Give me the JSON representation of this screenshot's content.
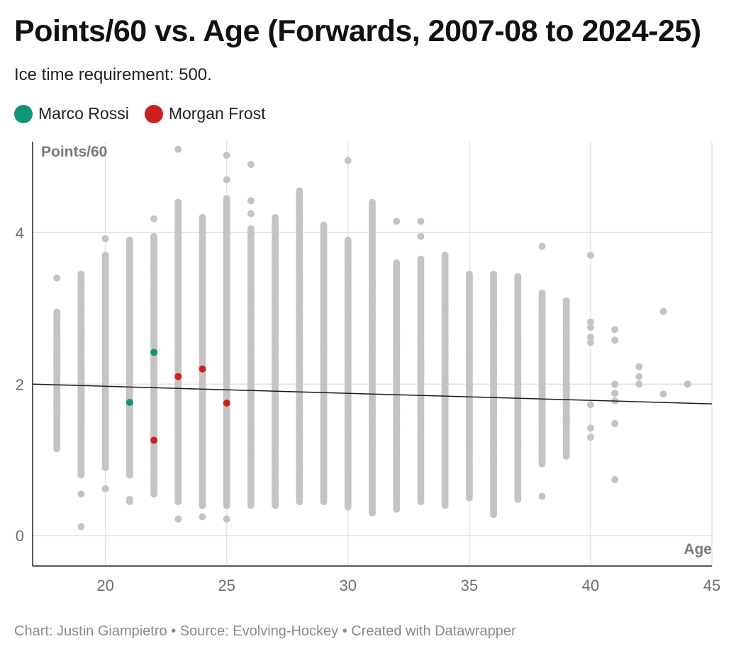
{
  "title": "Points/60 vs. Age (Forwards, 2007-08 to 2024-25)",
  "subtitle": "Ice time requirement: 500.",
  "legend": [
    {
      "label": "Marco Rossi",
      "color": "#10957a"
    },
    {
      "label": "Morgan Frost",
      "color": "#cc2020"
    }
  ],
  "footer": "Chart: Justin Giampietro • Source: Evolving-Hockey • Created with Datawrapper",
  "colors": {
    "background_points": "#c4c4c4",
    "trend_line": "#1a1a1a",
    "gridline": "#e3e3e3"
  },
  "chart_data": {
    "type": "scatter",
    "title": "Points/60 vs. Age (Forwards, 2007-08 to 2024-25)",
    "xlabel": "Age",
    "ylabel": "Points/60",
    "xlim": [
      17,
      45
    ],
    "ylim": [
      -0.4,
      5.2
    ],
    "x_ticks": [
      20,
      25,
      30,
      35,
      40,
      45
    ],
    "y_ticks": [
      0,
      2,
      4
    ],
    "grid": true,
    "legend_position": "top-left",
    "background_distribution": [
      {
        "age": 18,
        "min": 1.15,
        "max": 2.95,
        "outliers": [
          3.4
        ]
      },
      {
        "age": 19,
        "min": 0.8,
        "max": 3.45,
        "outliers": [
          0.12,
          0.55
        ]
      },
      {
        "age": 20,
        "min": 0.9,
        "max": 3.7,
        "outliers": [
          0.62,
          3.92
        ]
      },
      {
        "age": 21,
        "min": 0.8,
        "max": 3.9,
        "outliers": [
          0.45,
          0.48
        ]
      },
      {
        "age": 22,
        "min": 0.6,
        "max": 3.95,
        "outliers": [
          0.55,
          4.18
        ]
      },
      {
        "age": 23,
        "min": 0.45,
        "max": 4.4,
        "outliers": [
          0.22,
          5.1
        ]
      },
      {
        "age": 24,
        "min": 0.4,
        "max": 4.2,
        "outliers": [
          0.25
        ]
      },
      {
        "age": 25,
        "min": 0.4,
        "max": 4.45,
        "outliers": [
          0.22,
          4.7,
          5.02
        ]
      },
      {
        "age": 26,
        "min": 0.4,
        "max": 4.05,
        "outliers": [
          4.25,
          4.42,
          4.9
        ]
      },
      {
        "age": 27,
        "min": 0.4,
        "max": 4.2
      },
      {
        "age": 28,
        "min": 0.45,
        "max": 4.55
      },
      {
        "age": 29,
        "min": 0.45,
        "max": 4.1
      },
      {
        "age": 30,
        "min": 0.38,
        "max": 3.9,
        "outliers": [
          4.95
        ]
      },
      {
        "age": 31,
        "min": 0.3,
        "max": 4.4
      },
      {
        "age": 32,
        "min": 0.35,
        "max": 3.6,
        "outliers": [
          4.15
        ]
      },
      {
        "age": 33,
        "min": 0.45,
        "max": 3.65,
        "outliers": [
          3.95,
          4.15
        ]
      },
      {
        "age": 34,
        "min": 0.4,
        "max": 3.7
      },
      {
        "age": 35,
        "min": 0.5,
        "max": 3.45
      },
      {
        "age": 36,
        "min": 0.28,
        "max": 3.45
      },
      {
        "age": 37,
        "min": 0.48,
        "max": 3.42
      },
      {
        "age": 38,
        "min": 0.95,
        "max": 3.2,
        "outliers": [
          0.52,
          3.82
        ]
      },
      {
        "age": 39,
        "min": 1.05,
        "max": 3.1
      },
      {
        "age": 40,
        "values": [
          1.3,
          1.42,
          1.73,
          2.55,
          2.62,
          2.75,
          2.82,
          3.7
        ]
      },
      {
        "age": 41,
        "values": [
          0.74,
          1.48,
          1.78,
          1.88,
          2.0,
          2.58,
          2.72
        ]
      },
      {
        "age": 42,
        "values": [
          2.0,
          2.1,
          2.23
        ]
      },
      {
        "age": 43,
        "values": [
          1.87,
          2.96
        ]
      },
      {
        "age": 44,
        "values": [
          2.0
        ]
      }
    ],
    "series": [
      {
        "name": "Marco Rossi",
        "color": "#10957a",
        "points": [
          {
            "x": 21,
            "y": 1.76
          },
          {
            "x": 22,
            "y": 2.42
          }
        ]
      },
      {
        "name": "Morgan Frost",
        "color": "#cc2020",
        "points": [
          {
            "x": 22,
            "y": 1.26
          },
          {
            "x": 23,
            "y": 2.1
          },
          {
            "x": 24,
            "y": 2.2
          },
          {
            "x": 25,
            "y": 1.75
          }
        ]
      }
    ],
    "trend_line": {
      "x": [
        17,
        45
      ],
      "y": [
        2.0,
        1.74
      ]
    }
  }
}
